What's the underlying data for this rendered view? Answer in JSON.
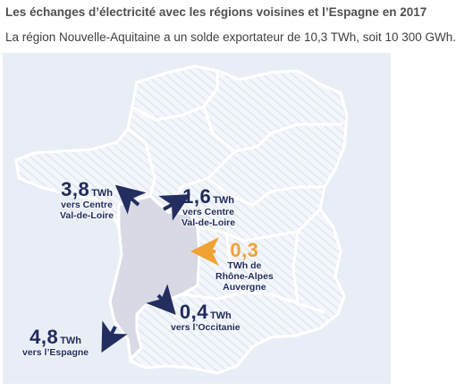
{
  "title": "Les échanges d’électricité avec les régions voisines et l’Espagne en 2017",
  "subtitle": "La région Nouvelle-Aquitaine a un solde exportateur de 10,3 TWh, soit 10 300 GWh.",
  "colors": {
    "panel": "#e9eef6",
    "region_highlight": "#d9d9e6",
    "border": "#ffffff",
    "export_arrow": "#232d5f",
    "import_arrow": "#f0a334",
    "text_dark": "#1e2a5a"
  },
  "flows": [
    {
      "id": "centre-nw",
      "direction": "export",
      "value": "3,8",
      "unit": "TWh",
      "lines": [
        "vers Centre",
        "Val-de-Loire"
      ]
    },
    {
      "id": "centre-ne",
      "direction": "export",
      "value": "1,6",
      "unit": "TWh",
      "lines": [
        "vers Centre",
        "Val-de-Loire"
      ]
    },
    {
      "id": "rhone-alpes",
      "direction": "import",
      "value": "0,3",
      "unit": "TWh",
      "lines": [
        "TWh de",
        "Rhône-Alpes",
        "Auvergne"
      ]
    },
    {
      "id": "occitanie",
      "direction": "export",
      "value": "0,4",
      "unit": "TWh",
      "lines": [
        "vers l’Occitanie"
      ]
    },
    {
      "id": "espagne",
      "direction": "export",
      "value": "4,8",
      "unit": "TWh",
      "lines": [
        "vers l’Espagne"
      ]
    }
  ]
}
